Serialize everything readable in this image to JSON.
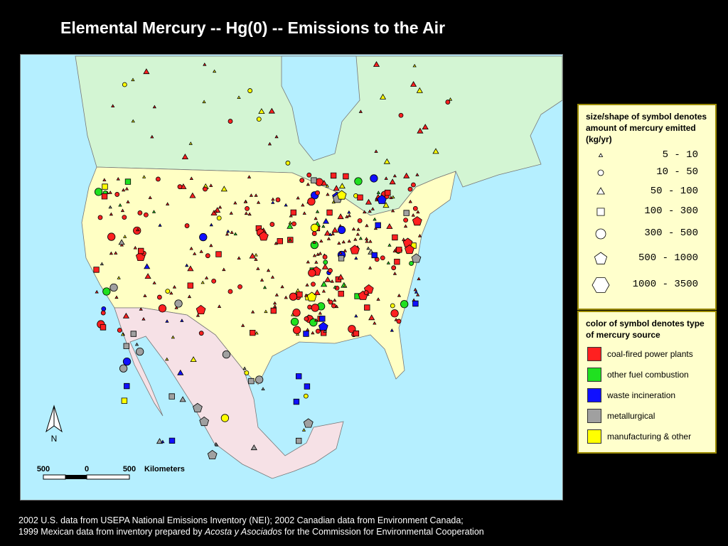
{
  "title": "Elemental Mercury -- Hg(0) -- Emissions to the Air",
  "size_legend": {
    "heading": "size/shape of symbol denotes amount of mercury emitted (kg/yr)",
    "items": [
      "5 - 10",
      "10 - 50",
      "50 - 100",
      "100 - 300",
      "300 - 500",
      "500 - 1000",
      "1000 - 3500"
    ]
  },
  "color_legend": {
    "heading": "color of symbol denotes type of mercury source",
    "items": [
      {
        "label": "coal-fired power plants",
        "color": "#ff2020"
      },
      {
        "label": "other fuel combustion",
        "color": "#20e020"
      },
      {
        "label": "waste incineration",
        "color": "#1010ff"
      },
      {
        "label": "metallurgical",
        "color": "#a0a0a0"
      },
      {
        "label": "manufacturing & other",
        "color": "#ffff00"
      }
    ]
  },
  "map": {
    "north_label": "N",
    "scale": {
      "labels": [
        500,
        0,
        500
      ],
      "unit": "Kilometers"
    }
  },
  "footnote": {
    "line1": "2002 U.S. data from USEPA National Emissions Inventory (NEI); 2002 Canadian data from Environment Canada;",
    "line2_before": "1999 Mexican data from inventory prepared by ",
    "line2_italic": "Acosta y Asociados",
    "line2_after": " for the Commission for Environmental Cooperation"
  }
}
